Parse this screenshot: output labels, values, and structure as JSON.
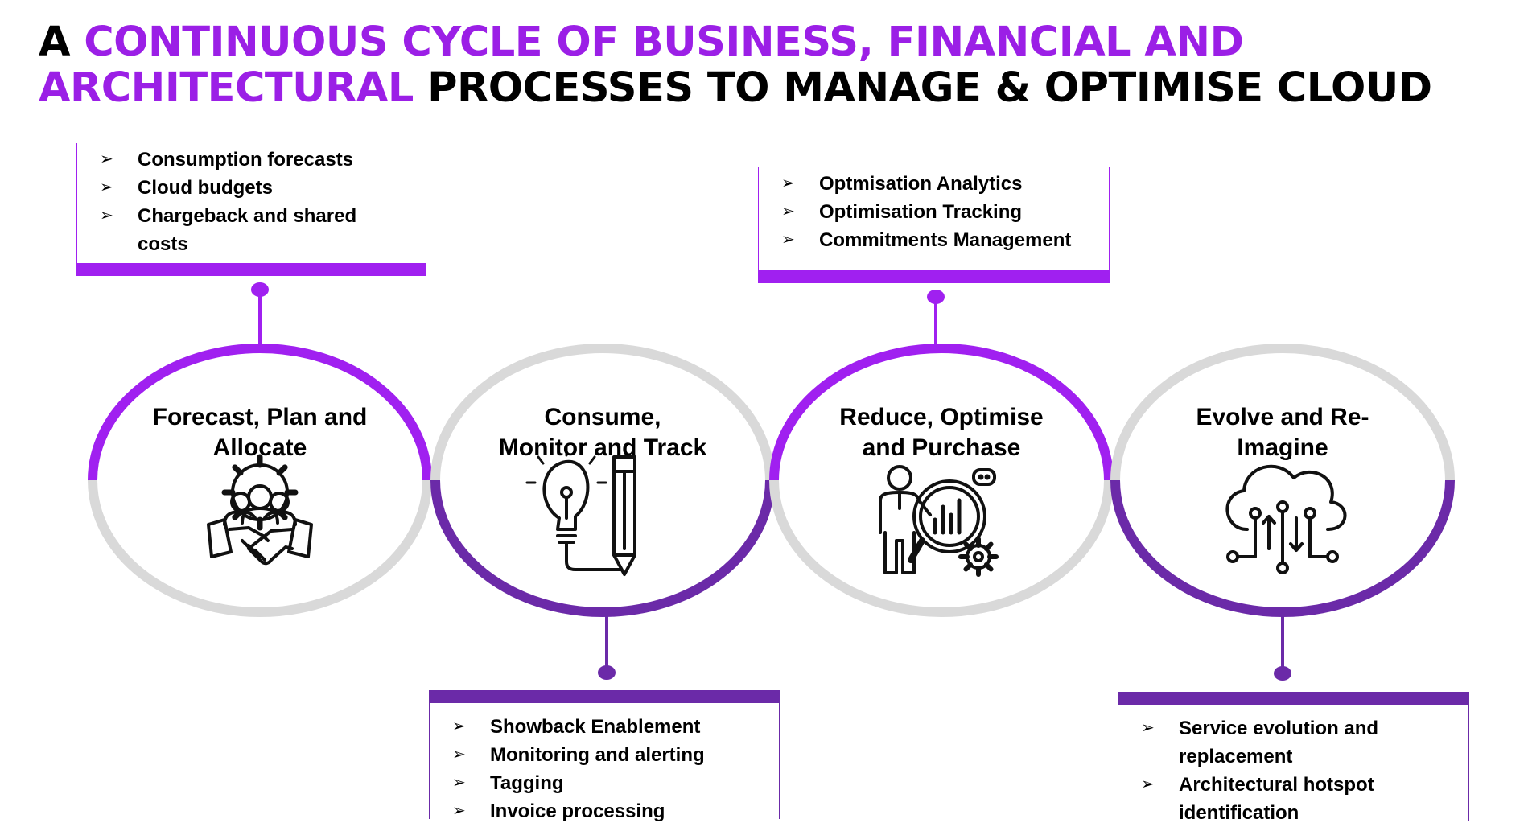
{
  "title": {
    "line1_prefix": "A ",
    "line1_accent": "CONTINUOUS CYCLE OF BUSINESS, FINANCIAL AND",
    "line2_accent": "ARCHITECTURAL",
    "line2_rest": " PROCESSES TO MANAGE & OPTIMISE CLOUD"
  },
  "colors": {
    "accent": "#9b1fe6",
    "bright_purple": "#a020f0",
    "dark_purple": "#6b2aa8",
    "grey": "#d9d9d9"
  },
  "bullet_glyph": "➢",
  "stages": [
    {
      "label": "Forecast, Plan and Allocate",
      "label_lines": [
        "Forecast, Plan and",
        "Allocate"
      ],
      "icon": "handshake-people-gear-icon",
      "box_position": "top",
      "items": [
        "Consumption forecasts",
        "Cloud budgets",
        "Chargeback and shared costs"
      ],
      "item_lines": [
        [
          "Consumption forecasts"
        ],
        [
          "Cloud budgets"
        ],
        [
          "Chargeback and shared",
          "costs"
        ]
      ]
    },
    {
      "label": "Consume, Monitor and Track",
      "label_lines": [
        "Consume,",
        "Monitor and Track"
      ],
      "icon": "lightbulb-pencil-icon",
      "box_position": "bottom",
      "items": [
        "Showback Enablement",
        "Monitoring and alerting",
        "Tagging",
        "Invoice processing"
      ],
      "item_lines": [
        [
          "Showback Enablement"
        ],
        [
          "Monitoring and alerting"
        ],
        [
          "Tagging"
        ],
        [
          "Invoice processing"
        ]
      ]
    },
    {
      "label": "Reduce, Optimise and Purchase",
      "label_lines": [
        "Reduce, Optimise",
        "and Purchase"
      ],
      "icon": "analyst-magnifier-chart-icon",
      "box_position": "top",
      "items": [
        "Optmisation Analytics",
        "Optimisation Tracking",
        "Commitments Management"
      ],
      "item_lines": [
        [
          "Optmisation Analytics"
        ],
        [
          "Optimisation Tracking"
        ],
        [
          "Commitments Management"
        ]
      ]
    },
    {
      "label": "Evolve and Re-Imagine",
      "label_lines": [
        "Evolve and Re-",
        "Imagine"
      ],
      "icon": "cloud-circuit-icon",
      "box_position": "bottom",
      "items": [
        "Service evolution and replacement",
        "Architectural hotspot identification"
      ],
      "item_lines": [
        [
          "Service evolution and",
          "replacement"
        ],
        [
          "Architectural hotspot",
          "identification"
        ]
      ]
    }
  ]
}
